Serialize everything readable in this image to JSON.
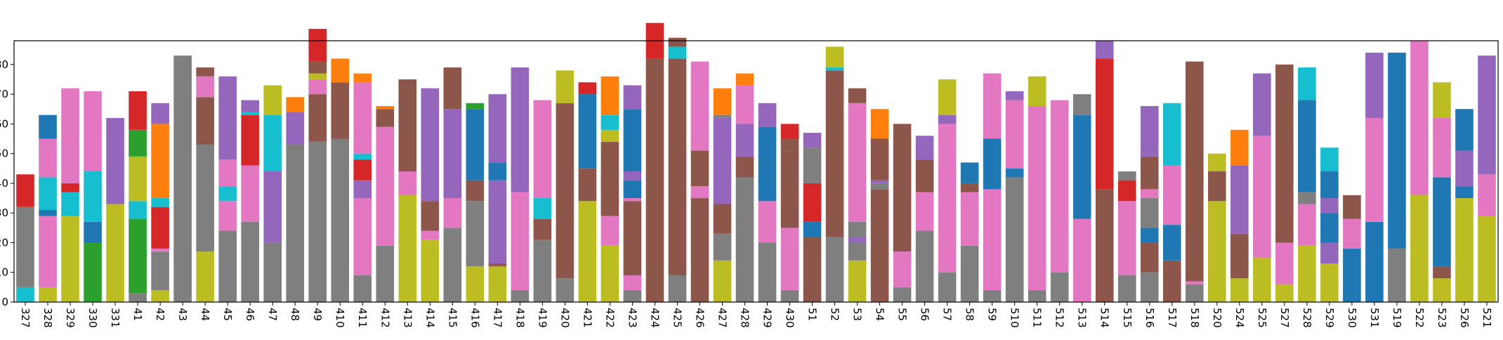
{
  "chart_data": {
    "type": "bar",
    "stacked": true,
    "title": "",
    "xlabel": "",
    "ylabel": "",
    "ylim": [
      0,
      88
    ],
    "yticks": [
      0,
      10,
      20,
      30,
      40,
      50,
      60,
      70,
      80
    ],
    "y_tick_labels_cropped": true,
    "xtick_rotation": -90,
    "grid": false,
    "legend": "none",
    "colors": {
      "blue": "#1f77b4",
      "orange": "#ff7f0e",
      "green": "#2ca02c",
      "red": "#d62728",
      "purple": "#9467bd",
      "brown": "#8c564b",
      "pink": "#e377c2",
      "gray": "#7f7f7f",
      "olive": "#bcbd22",
      "cyan": "#17becf"
    },
    "categories": [
      "327",
      "328",
      "329",
      "330",
      "331",
      "41",
      "42",
      "43",
      "44",
      "45",
      "46",
      "47",
      "48",
      "49",
      "410",
      "411",
      "412",
      "413",
      "414",
      "415",
      "416",
      "417",
      "418",
      "419",
      "420",
      "421",
      "422",
      "423",
      "424",
      "425",
      "426",
      "427",
      "428",
      "429",
      "430",
      "51",
      "52",
      "53",
      "54",
      "55",
      "56",
      "57",
      "58",
      "59",
      "510",
      "511",
      "512",
      "513",
      "514",
      "515",
      "516",
      "517",
      "518",
      "520",
      "524",
      "525",
      "527",
      "528",
      "529",
      "530",
      "531",
      "519",
      "522",
      "523",
      "526",
      "521"
    ],
    "stacks": [
      [
        [
          "cyan",
          5
        ],
        [
          "gray",
          27
        ],
        [
          "red",
          11
        ]
      ],
      [
        [
          "olive",
          5
        ],
        [
          "pink",
          24
        ],
        [
          "blue",
          2
        ],
        [
          "cyan",
          11
        ],
        [
          "pink",
          13
        ],
        [
          "blue",
          8
        ]
      ],
      [
        [
          "olive",
          29
        ],
        [
          "cyan",
          8
        ],
        [
          "red",
          3
        ],
        [
          "pink",
          32
        ]
      ],
      [
        [
          "green",
          20
        ],
        [
          "blue",
          7
        ],
        [
          "cyan",
          17
        ],
        [
          "pink",
          27
        ]
      ],
      [
        [
          "olive",
          33
        ],
        [
          "purple",
          29
        ]
      ],
      [
        [
          "gray",
          3
        ],
        [
          "green",
          25
        ],
        [
          "cyan",
          6
        ],
        [
          "olive",
          15
        ],
        [
          "green",
          9
        ],
        [
          "red",
          13
        ]
      ],
      [
        [
          "olive",
          4
        ],
        [
          "gray",
          13
        ],
        [
          "pink",
          1
        ],
        [
          "red",
          14
        ],
        [
          "cyan",
          3
        ],
        [
          "orange",
          25
        ],
        [
          "purple",
          7
        ]
      ],
      [
        [
          "gray",
          83
        ]
      ],
      [
        [
          "olive",
          17
        ],
        [
          "gray",
          36
        ],
        [
          "brown",
          16
        ],
        [
          "pink",
          7
        ],
        [
          "brown",
          3
        ]
      ],
      [
        [
          "gray",
          24
        ],
        [
          "pink",
          10
        ],
        [
          "cyan",
          5
        ],
        [
          "pink",
          9
        ],
        [
          "purple",
          28
        ]
      ],
      [
        [
          "gray",
          27
        ],
        [
          "pink",
          19
        ],
        [
          "red",
          17
        ],
        [
          "cyan",
          1
        ],
        [
          "purple",
          4
        ]
      ],
      [
        [
          "gray",
          20
        ],
        [
          "purple",
          24
        ],
        [
          "cyan",
          19
        ],
        [
          "olive",
          10
        ]
      ],
      [
        [
          "gray",
          53
        ],
        [
          "purple",
          11
        ],
        [
          "orange",
          5
        ]
      ],
      [
        [
          "gray",
          54
        ],
        [
          "brown",
          16
        ],
        [
          "pink",
          5
        ],
        [
          "olive",
          2
        ],
        [
          "brown",
          4
        ],
        [
          "red",
          11
        ]
      ],
      [
        [
          "gray",
          55
        ],
        [
          "brown",
          19
        ],
        [
          "orange",
          8
        ]
      ],
      [
        [
          "gray",
          9
        ],
        [
          "pink",
          26
        ],
        [
          "purple",
          6
        ],
        [
          "red",
          7
        ],
        [
          "cyan",
          2
        ],
        [
          "pink",
          24
        ],
        [
          "orange",
          3
        ]
      ],
      [
        [
          "gray",
          19
        ],
        [
          "pink",
          40
        ],
        [
          "brown",
          6
        ],
        [
          "orange",
          1
        ]
      ],
      [
        [
          "olive",
          36
        ],
        [
          "pink",
          8
        ],
        [
          "brown",
          31
        ]
      ],
      [
        [
          "olive",
          21
        ],
        [
          "pink",
          3
        ],
        [
          "brown",
          10
        ],
        [
          "purple",
          38
        ]
      ],
      [
        [
          "gray",
          25
        ],
        [
          "pink",
          10
        ],
        [
          "purple",
          30
        ],
        [
          "brown",
          14
        ]
      ],
      [
        [
          "olive",
          12
        ],
        [
          "gray",
          22
        ],
        [
          "brown",
          7
        ],
        [
          "blue",
          24
        ],
        [
          "green",
          2
        ]
      ],
      [
        [
          "olive",
          12
        ],
        [
          "brown",
          1
        ],
        [
          "purple",
          28
        ],
        [
          "blue",
          6
        ],
        [
          "purple",
          23
        ]
      ],
      [
        [
          "gray",
          4
        ],
        [
          "pink",
          33
        ],
        [
          "purple",
          42
        ]
      ],
      [
        [
          "gray",
          21
        ],
        [
          "brown",
          7
        ],
        [
          "cyan",
          7
        ],
        [
          "pink",
          33
        ]
      ],
      [
        [
          "gray",
          8
        ],
        [
          "brown",
          59
        ],
        [
          "olive",
          11
        ]
      ],
      [
        [
          "olive",
          34
        ],
        [
          "brown",
          11
        ],
        [
          "blue",
          25
        ],
        [
          "red",
          4
        ]
      ],
      [
        [
          "olive",
          19
        ],
        [
          "pink",
          10
        ],
        [
          "brown",
          25
        ],
        [
          "olive",
          4
        ],
        [
          "cyan",
          5
        ],
        [
          "orange",
          13
        ]
      ],
      [
        [
          "gray",
          4
        ],
        [
          "pink",
          5
        ],
        [
          "brown",
          25
        ],
        [
          "pink",
          1
        ],
        [
          "blue",
          6
        ],
        [
          "purple",
          3
        ],
        [
          "blue",
          21
        ],
        [
          "purple",
          8
        ]
      ],
      [
        [
          "brown",
          82
        ],
        [
          "red",
          12
        ]
      ],
      [
        [
          "gray",
          9
        ],
        [
          "brown",
          73
        ],
        [
          "cyan",
          4
        ],
        [
          "brown",
          3
        ]
      ],
      [
        [
          "brown",
          35
        ],
        [
          "pink",
          4
        ],
        [
          "brown",
          12
        ],
        [
          "pink",
          30
        ]
      ],
      [
        [
          "olive",
          14
        ],
        [
          "gray",
          9
        ],
        [
          "brown",
          10
        ],
        [
          "purple",
          29
        ],
        [
          "gray",
          1
        ],
        [
          "orange",
          9
        ]
      ],
      [
        [
          "gray",
          42
        ],
        [
          "brown",
          7
        ],
        [
          "purple",
          11
        ],
        [
          "pink",
          13
        ],
        [
          "orange",
          4
        ]
      ],
      [
        [
          "gray",
          20
        ],
        [
          "pink",
          14
        ],
        [
          "blue",
          25
        ],
        [
          "purple",
          8
        ]
      ],
      [
        [
          "gray",
          4
        ],
        [
          "pink",
          21
        ],
        [
          "brown",
          26
        ],
        [
          "brown",
          4
        ],
        [
          "red",
          5
        ]
      ],
      [
        [
          "brown",
          22
        ],
        [
          "blue",
          5
        ],
        [
          "red",
          13
        ],
        [
          "gray",
          12
        ],
        [
          "purple",
          5
        ]
      ],
      [
        [
          "gray",
          22
        ],
        [
          "brown",
          56
        ],
        [
          "cyan",
          1
        ],
        [
          "olive",
          7
        ]
      ],
      [
        [
          "olive",
          14
        ],
        [
          "gray",
          6
        ],
        [
          "purple",
          2
        ],
        [
          "gray",
          5
        ],
        [
          "pink",
          40
        ],
        [
          "brown",
          5
        ]
      ],
      [
        [
          "brown",
          38
        ],
        [
          "gray",
          2
        ],
        [
          "purple",
          1
        ],
        [
          "brown",
          14
        ],
        [
          "orange",
          10
        ]
      ],
      [
        [
          "gray",
          5
        ],
        [
          "pink",
          12
        ],
        [
          "brown",
          43
        ]
      ],
      [
        [
          "gray",
          24
        ],
        [
          "pink",
          13
        ],
        [
          "brown",
          11
        ],
        [
          "purple",
          8
        ]
      ],
      [
        [
          "gray",
          10
        ],
        [
          "pink",
          50
        ],
        [
          "purple",
          3
        ],
        [
          "olive",
          12
        ]
      ],
      [
        [
          "gray",
          19
        ],
        [
          "pink",
          18
        ],
        [
          "brown",
          3
        ],
        [
          "blue",
          7
        ]
      ],
      [
        [
          "gray",
          4
        ],
        [
          "pink",
          34
        ],
        [
          "blue",
          17
        ],
        [
          "pink",
          22
        ]
      ],
      [
        [
          "gray",
          42
        ],
        [
          "blue",
          3
        ],
        [
          "pink",
          23
        ],
        [
          "purple",
          3
        ]
      ],
      [
        [
          "gray",
          4
        ],
        [
          "pink",
          62
        ],
        [
          "olive",
          10
        ]
      ],
      [
        [
          "gray",
          10
        ],
        [
          "pink",
          58
        ]
      ],
      [
        [
          "pink",
          28
        ],
        [
          "blue",
          35
        ],
        [
          "gray",
          7
        ]
      ],
      [
        [
          "brown",
          38
        ],
        [
          "red",
          44
        ],
        [
          "purple",
          6
        ]
      ],
      [
        [
          "gray",
          9
        ],
        [
          "pink",
          25
        ],
        [
          "red",
          7
        ],
        [
          "gray",
          3
        ]
      ],
      [
        [
          "gray",
          10
        ],
        [
          "brown",
          10
        ],
        [
          "blue",
          5
        ],
        [
          "gray",
          10
        ],
        [
          "pink",
          3
        ],
        [
          "brown",
          11
        ],
        [
          "purple",
          17
        ]
      ],
      [
        [
          "brown",
          14
        ],
        [
          "blue",
          12
        ],
        [
          "pink",
          20
        ],
        [
          "cyan",
          21
        ]
      ],
      [
        [
          "gray",
          6
        ],
        [
          "pink",
          1
        ],
        [
          "brown",
          74
        ]
      ],
      [
        [
          "olive",
          34
        ],
        [
          "brown",
          10
        ],
        [
          "olive",
          6
        ]
      ],
      [
        [
          "olive",
          8
        ],
        [
          "brown",
          15
        ],
        [
          "purple",
          23
        ],
        [
          "orange",
          12
        ]
      ],
      [
        [
          "olive",
          15
        ],
        [
          "pink",
          41
        ],
        [
          "purple",
          21
        ]
      ],
      [
        [
          "olive",
          6
        ],
        [
          "pink",
          14
        ],
        [
          "brown",
          60
        ]
      ],
      [
        [
          "olive",
          19
        ],
        [
          "pink",
          14
        ],
        [
          "gray",
          4
        ],
        [
          "blue",
          31
        ],
        [
          "cyan",
          11
        ]
      ],
      [
        [
          "olive",
          13
        ],
        [
          "purple",
          7
        ],
        [
          "blue",
          10
        ],
        [
          "purple",
          5
        ],
        [
          "blue",
          9
        ],
        [
          "cyan",
          8
        ]
      ],
      [
        [
          "blue",
          18
        ],
        [
          "pink",
          10
        ],
        [
          "brown",
          8
        ]
      ],
      [
        [
          "blue",
          27
        ],
        [
          "pink",
          35
        ],
        [
          "purple",
          22
        ]
      ],
      [
        [
          "gray",
          18
        ],
        [
          "blue",
          66
        ]
      ],
      [
        [
          "olive",
          36
        ],
        [
          "pink",
          52
        ]
      ],
      [
        [
          "olive",
          8
        ],
        [
          "brown",
          4
        ],
        [
          "blue",
          30
        ],
        [
          "pink",
          20
        ],
        [
          "olive",
          12
        ]
      ],
      [
        [
          "olive",
          35
        ],
        [
          "blue",
          4
        ],
        [
          "purple",
          12
        ],
        [
          "blue",
          14
        ]
      ],
      [
        [
          "olive",
          29
        ],
        [
          "pink",
          14
        ],
        [
          "purple",
          40
        ]
      ]
    ]
  }
}
